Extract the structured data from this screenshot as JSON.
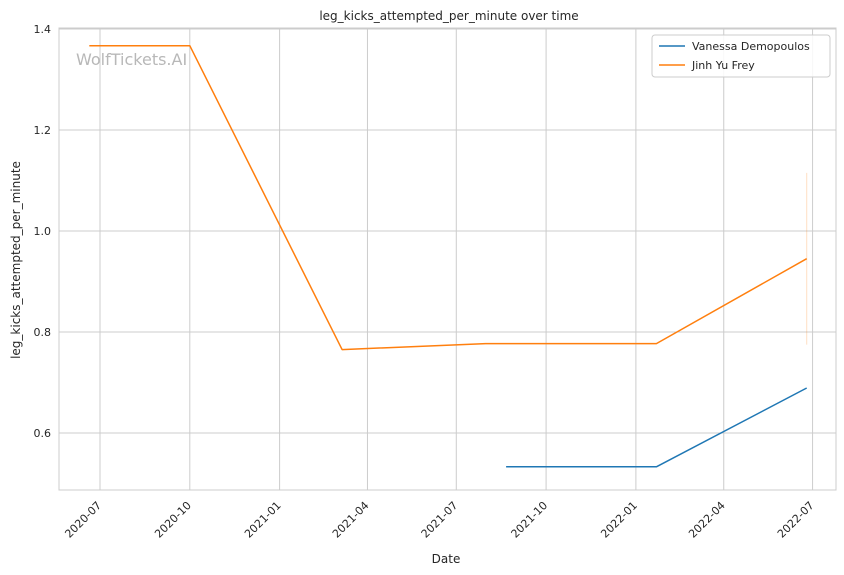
{
  "chart_data": {
    "type": "line",
    "title": "leg_kicks_attempted_per_minute over time",
    "xlabel": "Date",
    "ylabel": "leg_kicks_attempted_per_minute",
    "watermark": "WolfTickets.AI",
    "x_ticks": [
      "2020-07",
      "2020-10",
      "2021-01",
      "2021-04",
      "2021-07",
      "2021-10",
      "2022-01",
      "2022-04",
      "2022-07"
    ],
    "x_tick_dates": [
      "2020-07-01",
      "2020-10-01",
      "2021-01-01",
      "2021-04-01",
      "2021-07-01",
      "2021-10-01",
      "2022-01-01",
      "2022-04-01",
      "2022-07-01"
    ],
    "y_ticks": [
      "0.6",
      "0.8",
      "1.0",
      "1.2",
      "1.4"
    ],
    "y_tick_values": [
      0.6,
      0.8,
      1.0,
      1.2,
      1.4
    ],
    "xlim": [
      "2020-05-20",
      "2022-07-25"
    ],
    "ylim": [
      0.487,
      1.402
    ],
    "grid": true,
    "legend_position": "top-right",
    "series": [
      {
        "name": "Vanessa Demopoulos",
        "color": "#1f77b4",
        "x": [
          "2021-08-21",
          "2022-01-22",
          "2022-06-25"
        ],
        "y": [
          0.533,
          0.533,
          0.689
        ]
      },
      {
        "name": "Jinh Yu Frey",
        "color": "#ff7f0e",
        "x": [
          "2020-06-20",
          "2020-10-01",
          "2021-03-06",
          "2021-07-31",
          "2022-01-22",
          "2022-06-25"
        ],
        "y": [
          1.367,
          1.367,
          0.765,
          0.777,
          0.777,
          0.945
        ]
      }
    ],
    "error_band": {
      "series": "Jinh Yu Frey",
      "color": "#ff7f0e",
      "x": "2022-06-25",
      "y_low": 0.775,
      "y_high": 1.115
    }
  }
}
